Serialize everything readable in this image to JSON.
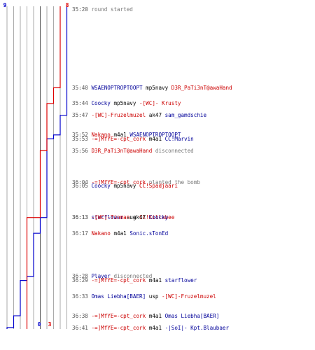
{
  "colors": {
    "ct": "#0000cc",
    "t": "#dd0000",
    "grid": "#aaaaaa",
    "grid_dark": "#555555",
    "neutral": "#777777"
  },
  "counters": {
    "ct_start": "9",
    "t_start": "8",
    "ct_end": "0",
    "t_end": "3"
  },
  "events": [
    {
      "time": "35:20",
      "parts": [
        {
          "text": "round started",
          "team": "info"
        }
      ]
    },
    {
      "time": "35:40",
      "parts": [
        {
          "text": "WSAENOPTROPTOOPT",
          "team": "blue"
        },
        {
          "text": " mp5navy ",
          "team": "dark"
        },
        {
          "text": "D3R_PaTi3nT@awaHand",
          "team": "red"
        }
      ]
    },
    {
      "time": "35:44",
      "parts": [
        {
          "text": "Coocky",
          "team": "blue"
        },
        {
          "text": " mp5navy ",
          "team": "dark"
        },
        {
          "text": "-[WC]- Krusty",
          "team": "red"
        }
      ]
    },
    {
      "time": "35:47",
      "parts": [
        {
          "text": "-[WC]-Fruzelmuzel",
          "team": "red"
        },
        {
          "text": " ak47 ",
          "team": "dark"
        },
        {
          "text": "sam_gamdschie",
          "team": "blue"
        }
      ]
    },
    {
      "time": "35:52",
      "parts": [
        {
          "text": "Nakano",
          "team": "red"
        },
        {
          "text": " m4a1 ",
          "team": "dark"
        },
        {
          "text": "WSAENOPTROPTOOPT",
          "team": "blue"
        }
      ]
    },
    {
      "time": "35:53",
      "parts": [
        {
          "text": "-=]MfYE=-cpt_cork",
          "team": "red"
        },
        {
          "text": " m4a1 ",
          "team": "dark"
        },
        {
          "text": "CC!Marvin",
          "team": "blue"
        }
      ]
    },
    {
      "time": "35:56",
      "parts": [
        {
          "text": "D3R_PaTi3nT@awaHand",
          "team": "red"
        },
        {
          "text": " disconnected",
          "team": "info"
        }
      ]
    },
    {
      "time": "36:04",
      "parts": [
        {
          "text": "-=]MfYE=-cpt_cork",
          "team": "red"
        },
        {
          "text": " planted the bomb",
          "team": "info"
        }
      ]
    },
    {
      "time": "36:05",
      "parts": [
        {
          "text": "Coocky",
          "team": "blue"
        },
        {
          "text": " mp5navy ",
          "team": "dark"
        },
        {
          "text": "CC!Spadjaari",
          "team": "red"
        }
      ]
    },
    {
      "time": "36:13",
      "parts": [
        {
          "text": "starflower",
          "team": "blue"
        },
        {
          "text": " aug ",
          "team": "dark"
        },
        {
          "text": "CC!Killabee",
          "team": "red"
        }
      ]
    },
    {
      "time": "36:13",
      "parts": [
        {
          "text": "-[WC]-Tinman",
          "team": "red"
        },
        {
          "text": " ak47 ",
          "team": "dark"
        },
        {
          "text": "Coocky",
          "team": "blue"
        }
      ]
    },
    {
      "time": "36:17",
      "parts": [
        {
          "text": "Nakano",
          "team": "red"
        },
        {
          "text": " m4a1 ",
          "team": "dark"
        },
        {
          "text": "Sonic.sTonEd",
          "team": "blue"
        }
      ]
    },
    {
      "time": "36:28",
      "parts": [
        {
          "text": "Player",
          "team": "blue"
        },
        {
          "text": " disconnected",
          "team": "info"
        }
      ]
    },
    {
      "time": "36:29",
      "parts": [
        {
          "text": "-=]MfYE=-cpt_cork",
          "team": "red"
        },
        {
          "text": " m4a1 ",
          "team": "dark"
        },
        {
          "text": "starflower",
          "team": "blue"
        }
      ]
    },
    {
      "time": "36:33",
      "parts": [
        {
          "text": "Omas Liebha[BAER]",
          "team": "blue"
        },
        {
          "text": " usp ",
          "team": "dark"
        },
        {
          "text": "-[WC]-Fruzelmuzel",
          "team": "red"
        }
      ]
    },
    {
      "time": "36:38",
      "parts": [
        {
          "text": "-=]MfYE=-cpt_cork",
          "team": "red"
        },
        {
          "text": " m4a1 ",
          "team": "dark"
        },
        {
          "text": "Omas Liebha[BAER]",
          "team": "blue"
        }
      ]
    },
    {
      "time": "36:41",
      "parts": [
        {
          "text": "-=]MfYE=-cpt_cork",
          "team": "red"
        },
        {
          "text": " m4a1 ",
          "team": "dark"
        },
        {
          "text": "-|SoI|- Kpt.Blaubaer",
          "team": "blue"
        }
      ]
    }
  ],
  "chart_data": {
    "type": "line",
    "x_unit": "players alive",
    "xlim": [
      0,
      9
    ],
    "series": [
      {
        "team": "ct",
        "steps": [
          {
            "time": "35:20",
            "alive": 9
          },
          {
            "time": "35:47",
            "alive": 8
          },
          {
            "time": "35:52",
            "alive": 7
          },
          {
            "time": "35:53",
            "alive": 6
          },
          {
            "time": "36:13",
            "alive": 5
          },
          {
            "time": "36:17",
            "alive": 4
          },
          {
            "time": "36:28",
            "alive": 3
          },
          {
            "time": "36:29",
            "alive": 2
          },
          {
            "time": "36:38",
            "alive": 1
          },
          {
            "time": "36:41",
            "alive": 0
          }
        ]
      },
      {
        "team": "t",
        "steps": [
          {
            "time": "35:20",
            "alive": 8
          },
          {
            "time": "35:40",
            "alive": 7
          },
          {
            "time": "35:44",
            "alive": 6
          },
          {
            "time": "35:56",
            "alive": 5
          },
          {
            "time": "36:13",
            "alive": 3
          },
          {
            "time": "36:33",
            "alive": 3
          }
        ]
      }
    ]
  }
}
